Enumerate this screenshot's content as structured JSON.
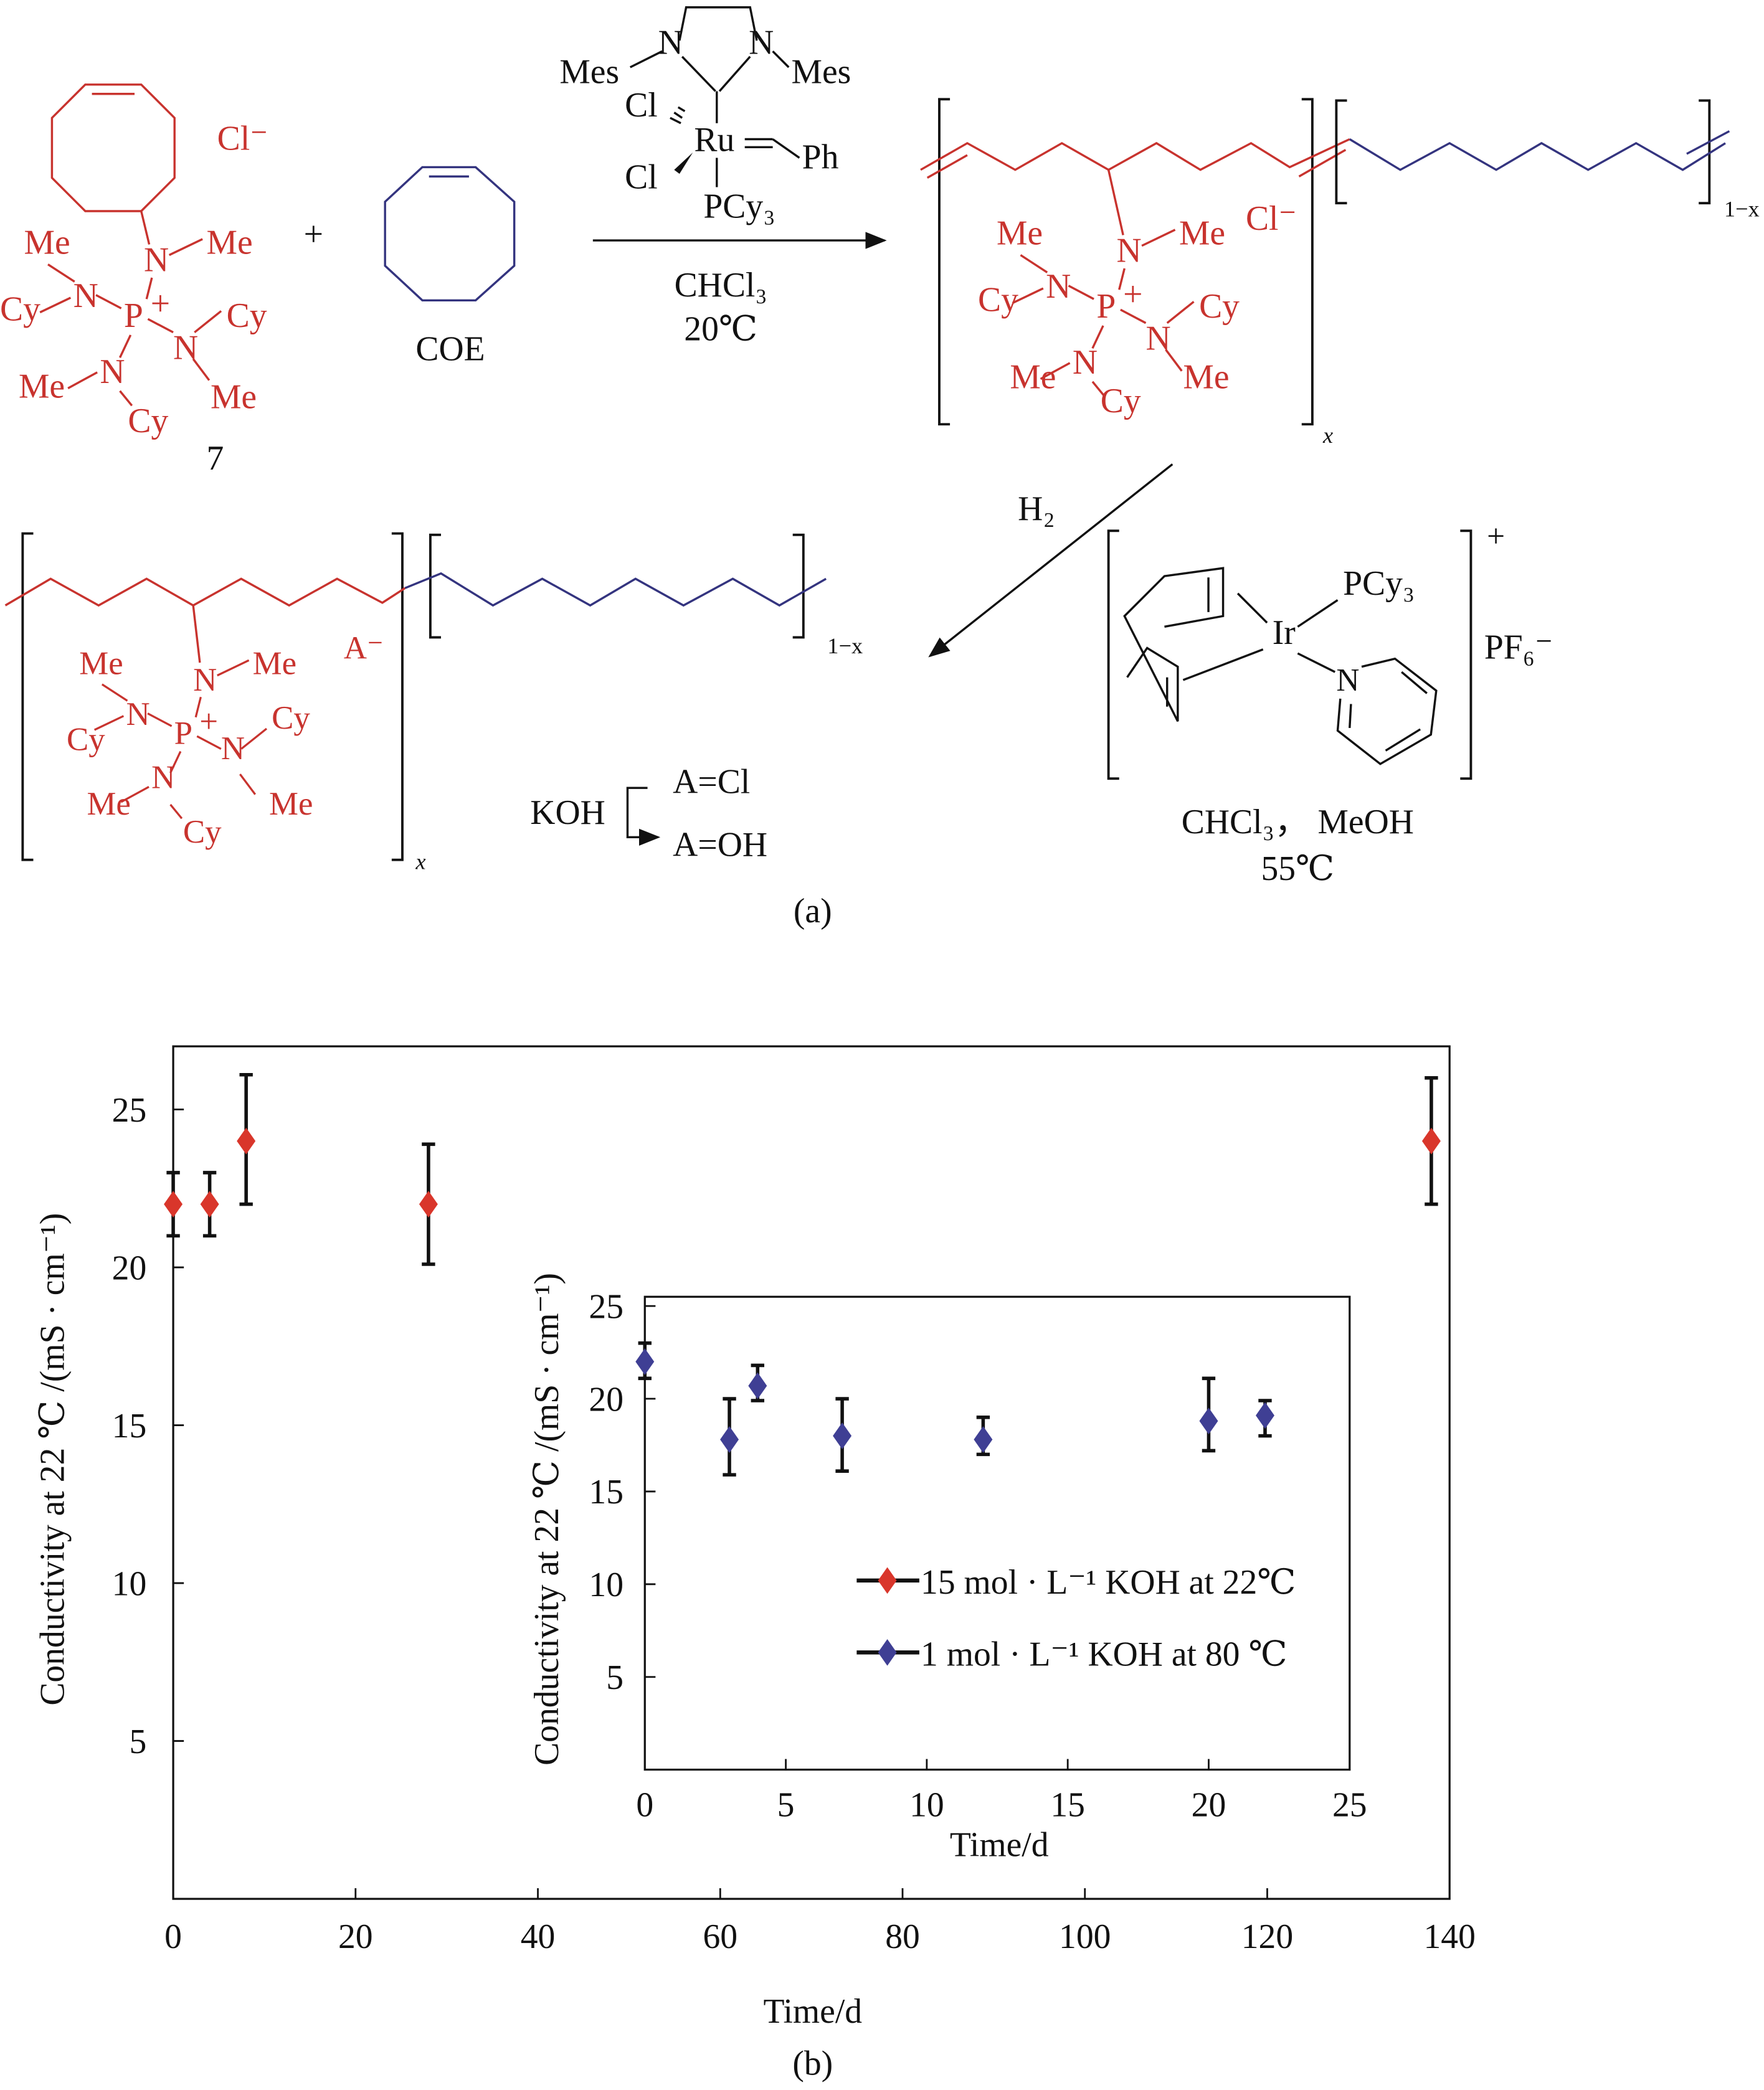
{
  "scheme": {
    "monomer": {
      "counterion": "Cl⁻",
      "labels": [
        "Me",
        "N",
        "Me",
        "N",
        "Cy",
        "P",
        "+",
        "N",
        "Cy",
        "N",
        "Me",
        "Me",
        "Cy"
      ],
      "compound_number": "7"
    },
    "plus": "+",
    "comonomer": "COE",
    "catalyst": {
      "labels": [
        "N",
        "N",
        "Mes",
        "Mes",
        "Cl",
        "Ru",
        "Ph",
        "Cl",
        "PCy₃"
      ]
    },
    "step1_conditions": [
      "CHCl₃",
      "20℃"
    ],
    "polymer_cl": {
      "labels": [
        "Me",
        "N",
        "Me",
        "N",
        "Cy",
        "P",
        "+",
        "N",
        "Cy",
        "N",
        "Me",
        "Me",
        "Cy"
      ],
      "counterion": "Cl⁻",
      "x": "x",
      "one_minus_x": "1−x"
    },
    "step2": {
      "reagent": "H₂",
      "catalyst_labels": [
        "Ir",
        "PCy₃",
        "N"
      ],
      "charge": "+",
      "anion": "PF₆⁻",
      "conditions": [
        "CHCl₃， MeOH",
        "55℃"
      ]
    },
    "polymer_a": {
      "labels": [
        "Me",
        "N",
        "Me",
        "N",
        "Cy",
        "P",
        "+",
        "N",
        "Cy",
        "N",
        "Me",
        "Me",
        "Cy"
      ],
      "counterion": "A⁻",
      "x": "x",
      "one_minus_x": "1−x"
    },
    "exchange": {
      "reagent": "KOH",
      "from": "A=Cl",
      "to": "A=OH"
    },
    "panel_label": "(a)"
  },
  "colors": {
    "cationic_unit": "#c8332e",
    "coe_unit": "#34347f",
    "series_22C": "#d9362b",
    "series_80C": "#3f3f94"
  },
  "chart_panel_label": "(b)",
  "chart_data": [
    {
      "type": "scatter",
      "xlabel": "Time/d",
      "ylabel": "Conductivity at 22 ℃ /(mS · cm⁻¹)",
      "xlim": [
        0,
        140
      ],
      "ylim": [
        0,
        27
      ],
      "xticks": [
        "0",
        "20",
        "40",
        "60",
        "80",
        "100",
        "120",
        "140"
      ],
      "yticks": [
        "5",
        "10",
        "15",
        "20",
        "25"
      ],
      "series": [
        {
          "name": "15 mol · L⁻¹ KOH at 22℃",
          "color": "#d9362b",
          "marker": "diamond",
          "x": [
            0,
            4,
            8,
            28,
            138
          ],
          "y": [
            22,
            22,
            24,
            22,
            24
          ],
          "err_low": [
            21,
            21,
            22,
            20.1,
            22
          ],
          "err_high": [
            23,
            23,
            26.1,
            23.9,
            26
          ]
        }
      ]
    },
    {
      "type": "scatter",
      "inset": true,
      "xlabel": "Time/d",
      "ylabel": "Conductivity at 22 ℃ /(mS · cm⁻¹)",
      "xlim": [
        0,
        25
      ],
      "ylim": [
        0,
        25.5
      ],
      "xticks": [
        "0",
        "5",
        "10",
        "15",
        "20",
        "25"
      ],
      "yticks": [
        "5",
        "10",
        "15",
        "20",
        "25"
      ],
      "legend": "lower-right",
      "series": [
        {
          "name": "1 mol · L⁻¹ KOH at 80 ℃",
          "color": "#3f3f94",
          "marker": "diamond",
          "x": [
            0,
            3,
            4,
            7,
            12,
            20,
            22
          ],
          "y": [
            22,
            17.8,
            20.7,
            18,
            17.8,
            18.8,
            19.1
          ],
          "err_low": [
            21.1,
            15.9,
            19.9,
            16.1,
            17,
            17.2,
            18
          ],
          "err_high": [
            23,
            20,
            21.8,
            20,
            19,
            21.1,
            19.9
          ]
        }
      ]
    }
  ]
}
